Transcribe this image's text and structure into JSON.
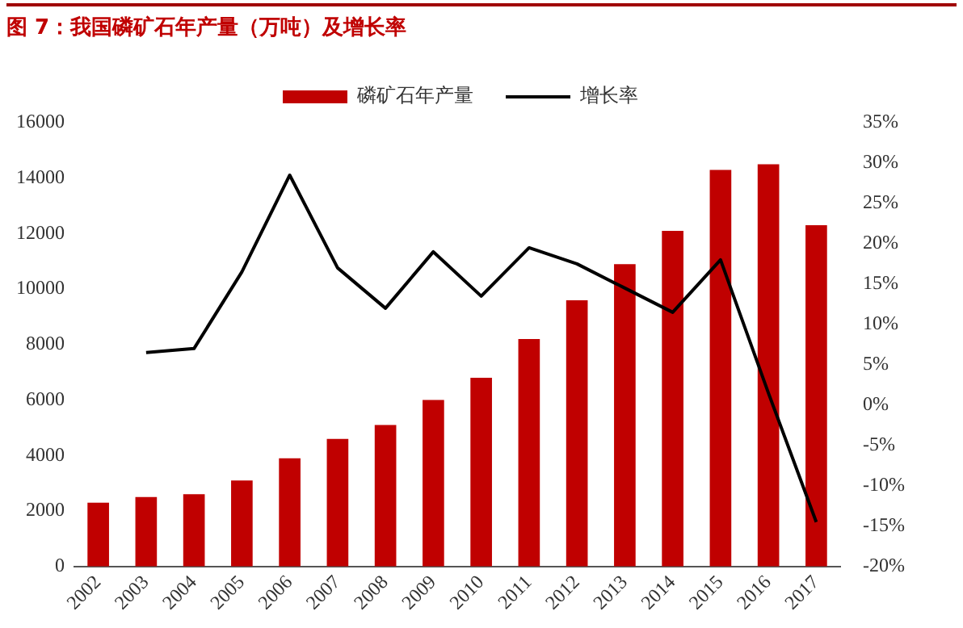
{
  "chart_data": {
    "type": "bar",
    "title": "图 7：我国磷矿石年产量（万吨）及增长率",
    "categories": [
      "2002",
      "2003",
      "2004",
      "2005",
      "2006",
      "2007",
      "2008",
      "2009",
      "2010",
      "2011",
      "2012",
      "2013",
      "2014",
      "2015",
      "2016",
      "2017"
    ],
    "series": [
      {
        "name": "磷矿石年产量",
        "color": "#c00000",
        "values": [
          2300,
          2500,
          2600,
          3100,
          3900,
          4600,
          5100,
          6000,
          6800,
          8200,
          9600,
          10900,
          12100,
          14300,
          14500,
          12300
        ]
      },
      {
        "name": "增长率",
        "type": "line",
        "axis": "y2",
        "color": "#000000",
        "values": [
          null,
          6.5,
          7,
          16.5,
          28.5,
          17,
          12,
          19,
          13.5,
          19.5,
          17.5,
          14.5,
          11.5,
          18,
          1.5,
          -14.5
        ]
      }
    ],
    "ylim": [
      0,
      16000
    ],
    "yticks": [
      0,
      2000,
      4000,
      6000,
      8000,
      10000,
      12000,
      14000,
      16000
    ],
    "y2lim": [
      -20,
      35
    ],
    "y2ticks": [
      {
        "value": -20,
        "label": "-20%"
      },
      {
        "value": -15,
        "label": "-15%"
      },
      {
        "value": -10,
        "label": "-10%"
      },
      {
        "value": -5,
        "label": "-5%"
      },
      {
        "value": 0,
        "label": "0%"
      },
      {
        "value": 5,
        "label": "5%"
      },
      {
        "value": 10,
        "label": "10%"
      },
      {
        "value": 15,
        "label": "15%"
      },
      {
        "value": 20,
        "label": "20%"
      },
      {
        "value": 25,
        "label": "25%"
      },
      {
        "value": 30,
        "label": "30%"
      },
      {
        "value": 35,
        "label": "35%"
      }
    ],
    "grid": false,
    "legend": "top",
    "marker": "none",
    "line_style": "solid"
  }
}
